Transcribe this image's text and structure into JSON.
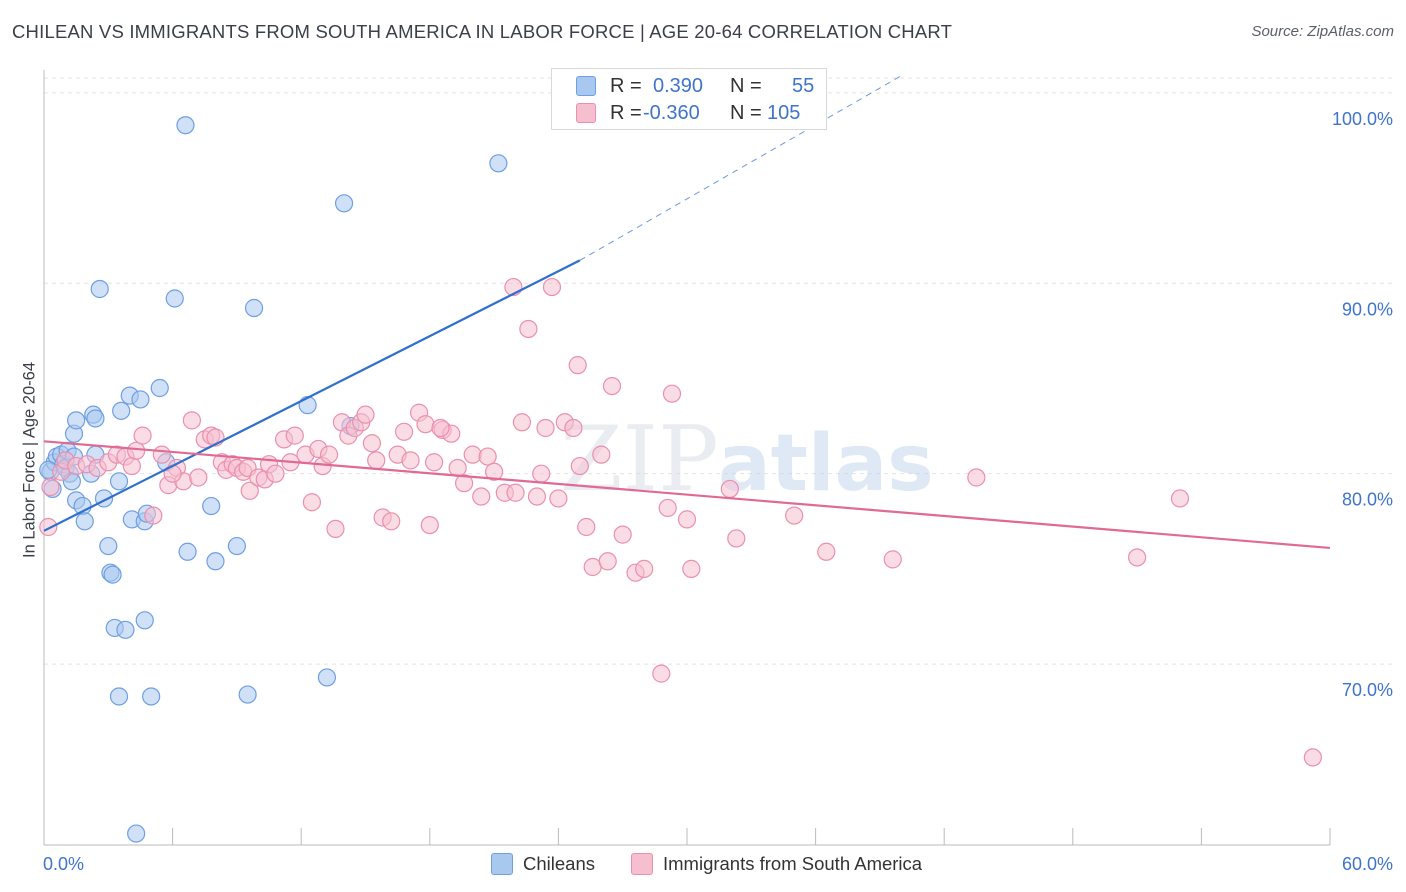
{
  "title": "CHILEAN VS IMMIGRANTS FROM SOUTH AMERICA IN LABOR FORCE | AGE 20-64 CORRELATION CHART",
  "source": "Source: ZipAtlas.com",
  "watermark": {
    "zip": "ZIP",
    "atlas": "atlas"
  },
  "colors": {
    "blue_fill": "#a9c8f0",
    "blue_stroke": "#6e9fe0",
    "blue_line": "#2f6fce",
    "pink_fill": "#f5bfd0",
    "pink_stroke": "#ea8fb0",
    "pink_line": "#e06a95",
    "axis_text": "#3f74c9",
    "grid": "#e3e3e3"
  },
  "legend": {
    "rows": [
      {
        "r_label": "R =",
        "r_value": "0.390",
        "n_label": "N =",
        "n_value": "55"
      },
      {
        "r_label": "R =",
        "r_value": "-0.360",
        "n_label": "N =",
        "n_value": "105"
      }
    ]
  },
  "bottom_legend": {
    "series1": "Chileans",
    "series2": "Immigrants from South America"
  },
  "chart_data": {
    "type": "scatter",
    "title": "CHILEAN VS IMMIGRANTS FROM SOUTH AMERICA IN LABOR FORCE | AGE 20-64 CORRELATION CHART",
    "xlabel": "",
    "ylabel": "In Labor Force | Age 20-64",
    "xlim": [
      0,
      60
    ],
    "ylim": [
      60.5,
      101.2
    ],
    "x_tick_labels": [
      "0.0%",
      "60.0%"
    ],
    "y_ticks": [
      70,
      80,
      90,
      100
    ],
    "y_tick_labels": [
      "70.0%",
      "80.0%",
      "90.0%",
      "100.0%"
    ],
    "grid": true,
    "series": [
      {
        "name": "Chileans",
        "color": "#6e9fe0",
        "r": 0.39,
        "n": 55,
        "trend": {
          "x": [
            0,
            25
          ],
          "y": [
            77.0,
            91.2
          ],
          "dashed_to": [
            40,
            100.9
          ]
        },
        "points": [
          [
            0.3,
            80.1
          ],
          [
            0.4,
            79.2
          ],
          [
            0.5,
            80.6
          ],
          [
            0.6,
            80.9
          ],
          [
            0.8,
            81.0
          ],
          [
            0.9,
            80.5
          ],
          [
            1.0,
            80.3
          ],
          [
            1.1,
            81.2
          ],
          [
            1.2,
            80.0
          ],
          [
            1.3,
            79.6
          ],
          [
            1.4,
            80.9
          ],
          [
            1.4,
            82.1
          ],
          [
            1.5,
            82.8
          ],
          [
            1.5,
            78.6
          ],
          [
            1.8,
            78.3
          ],
          [
            1.9,
            77.5
          ],
          [
            2.2,
            80.0
          ],
          [
            2.3,
            83.1
          ],
          [
            2.4,
            82.9
          ],
          [
            2.4,
            81.0
          ],
          [
            2.6,
            89.7
          ],
          [
            2.8,
            78.7
          ],
          [
            3.0,
            76.2
          ],
          [
            3.1,
            74.8
          ],
          [
            3.2,
            74.7
          ],
          [
            3.3,
            71.9
          ],
          [
            3.5,
            79.6
          ],
          [
            3.5,
            68.3
          ],
          [
            3.6,
            83.3
          ],
          [
            3.8,
            71.8
          ],
          [
            4.0,
            84.1
          ],
          [
            4.1,
            77.6
          ],
          [
            4.3,
            61.1
          ],
          [
            4.5,
            83.9
          ],
          [
            4.7,
            77.5
          ],
          [
            4.7,
            72.3
          ],
          [
            4.8,
            77.9
          ],
          [
            5.0,
            68.3
          ],
          [
            5.4,
            84.5
          ],
          [
            5.7,
            80.6
          ],
          [
            6.1,
            89.2
          ],
          [
            6.6,
            98.3
          ],
          [
            6.7,
            75.9
          ],
          [
            7.8,
            78.3
          ],
          [
            8.0,
            75.4
          ],
          [
            9.0,
            76.2
          ],
          [
            9.5,
            68.4
          ],
          [
            9.8,
            88.7
          ],
          [
            12.3,
            83.6
          ],
          [
            13.2,
            69.3
          ],
          [
            14.0,
            94.2
          ],
          [
            14.3,
            82.5
          ],
          [
            21.2,
            96.3
          ],
          [
            24.4,
            100.0
          ],
          [
            0.2,
            80.2
          ]
        ]
      },
      {
        "name": "Immigrants from South America",
        "color": "#ea8fb0",
        "r": -0.36,
        "n": 105,
        "trend": {
          "x": [
            0,
            60
          ],
          "y": [
            81.7,
            76.1
          ]
        },
        "points": [
          [
            0.2,
            77.2
          ],
          [
            0.3,
            79.3
          ],
          [
            0.8,
            80.1
          ],
          [
            1.0,
            80.7
          ],
          [
            1.5,
            80.4
          ],
          [
            2.0,
            80.5
          ],
          [
            2.5,
            80.3
          ],
          [
            3.0,
            80.6
          ],
          [
            3.4,
            81.0
          ],
          [
            3.8,
            80.9
          ],
          [
            4.1,
            80.4
          ],
          [
            4.3,
            81.2
          ],
          [
            4.6,
            82.0
          ],
          [
            5.1,
            77.8
          ],
          [
            5.5,
            81.0
          ],
          [
            5.8,
            79.4
          ],
          [
            6.2,
            80.3
          ],
          [
            6.5,
            79.6
          ],
          [
            6.9,
            82.8
          ],
          [
            7.2,
            79.8
          ],
          [
            7.5,
            81.8
          ],
          [
            7.8,
            82.0
          ],
          [
            8.0,
            81.9
          ],
          [
            8.3,
            80.6
          ],
          [
            8.5,
            80.2
          ],
          [
            8.8,
            80.5
          ],
          [
            9.0,
            80.3
          ],
          [
            9.3,
            80.1
          ],
          [
            9.5,
            80.3
          ],
          [
            9.6,
            79.1
          ],
          [
            10.0,
            79.8
          ],
          [
            10.3,
            79.7
          ],
          [
            10.5,
            80.5
          ],
          [
            10.8,
            80.0
          ],
          [
            11.2,
            81.8
          ],
          [
            11.5,
            80.6
          ],
          [
            11.7,
            82.0
          ],
          [
            12.2,
            81.0
          ],
          [
            12.5,
            78.5
          ],
          [
            12.8,
            81.3
          ],
          [
            13.0,
            80.4
          ],
          [
            13.3,
            81.0
          ],
          [
            13.6,
            77.1
          ],
          [
            13.9,
            82.7
          ],
          [
            14.2,
            82.0
          ],
          [
            14.5,
            82.4
          ],
          [
            14.8,
            82.7
          ],
          [
            15.0,
            83.1
          ],
          [
            15.3,
            81.6
          ],
          [
            15.5,
            80.7
          ],
          [
            15.8,
            77.7
          ],
          [
            16.2,
            77.5
          ],
          [
            16.5,
            81.0
          ],
          [
            16.8,
            82.2
          ],
          [
            17.1,
            80.7
          ],
          [
            17.5,
            83.2
          ],
          [
            17.8,
            82.6
          ],
          [
            18.0,
            77.3
          ],
          [
            18.2,
            80.6
          ],
          [
            18.6,
            82.3
          ],
          [
            19.0,
            82.1
          ],
          [
            19.3,
            80.3
          ],
          [
            19.6,
            79.5
          ],
          [
            20.0,
            81.0
          ],
          [
            20.4,
            78.8
          ],
          [
            20.7,
            80.9
          ],
          [
            21.0,
            80.1
          ],
          [
            21.5,
            79.0
          ],
          [
            21.9,
            89.8
          ],
          [
            22.3,
            82.7
          ],
          [
            22.6,
            87.6
          ],
          [
            23.0,
            78.8
          ],
          [
            23.2,
            80.0
          ],
          [
            23.4,
            82.4
          ],
          [
            23.7,
            89.8
          ],
          [
            24.0,
            78.7
          ],
          [
            24.3,
            82.7
          ],
          [
            24.7,
            82.4
          ],
          [
            24.9,
            85.7
          ],
          [
            25.0,
            80.4
          ],
          [
            25.3,
            77.2
          ],
          [
            25.6,
            75.1
          ],
          [
            26.0,
            81.0
          ],
          [
            26.3,
            75.4
          ],
          [
            26.5,
            84.6
          ],
          [
            27.0,
            76.8
          ],
          [
            27.6,
            74.8
          ],
          [
            28.0,
            75.0
          ],
          [
            29.1,
            78.2
          ],
          [
            29.3,
            84.2
          ],
          [
            30.0,
            77.6
          ],
          [
            30.2,
            75.0
          ],
          [
            32.0,
            79.2
          ],
          [
            32.3,
            76.6
          ],
          [
            35.0,
            77.8
          ],
          [
            36.5,
            75.9
          ],
          [
            39.6,
            75.5
          ],
          [
            43.5,
            79.8
          ],
          [
            51.0,
            75.6
          ],
          [
            53.0,
            78.7
          ],
          [
            59.2,
            65.1
          ],
          [
            28.8,
            69.5
          ],
          [
            22.0,
            79.0
          ],
          [
            18.5,
            82.4
          ],
          [
            6.0,
            80.0
          ]
        ]
      }
    ]
  }
}
